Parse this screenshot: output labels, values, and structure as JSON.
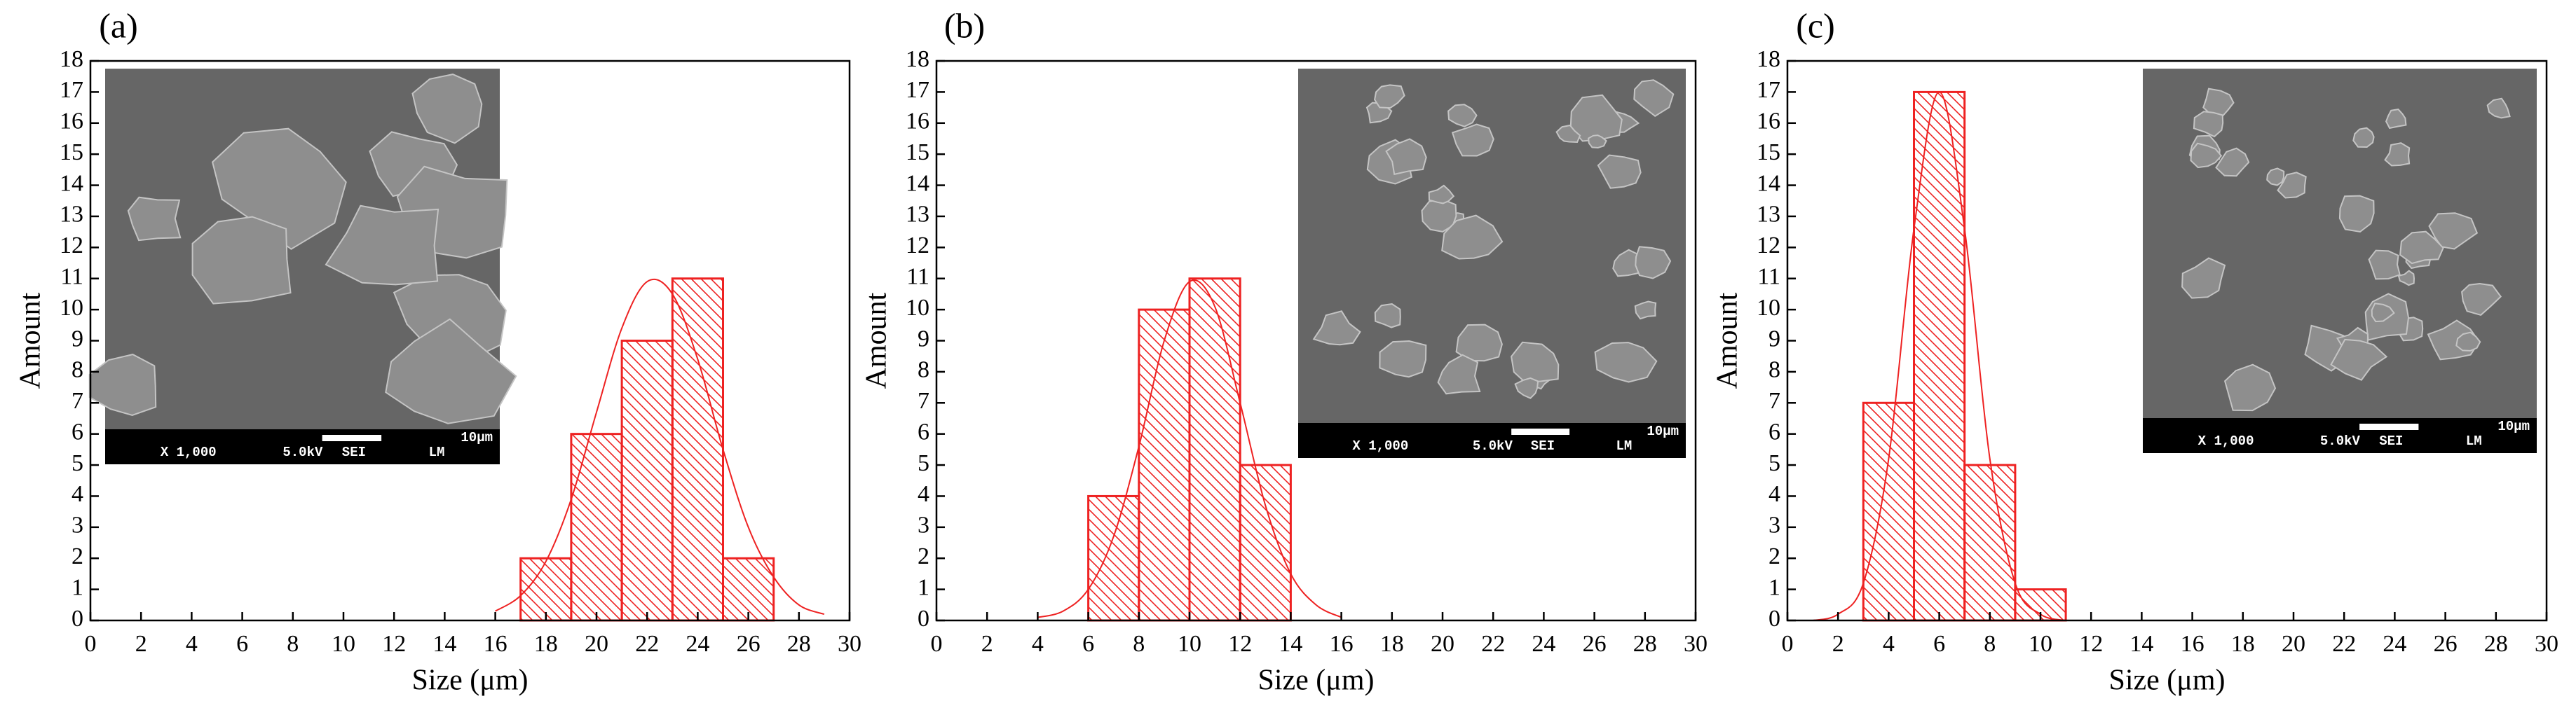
{
  "chart_data": [
    {
      "type": "histogram",
      "label": "(a)",
      "xlabel": "Size (μm)",
      "ylabel": "Amount",
      "color": "#ee2222",
      "bins": [
        17,
        19,
        21,
        23,
        25,
        27
      ],
      "values": [
        2,
        6,
        9,
        11,
        2
      ],
      "fit": {
        "x": [
          16,
          17,
          18,
          19,
          20,
          21,
          22,
          23,
          24,
          25,
          26,
          27,
          28,
          29
        ],
        "values": [
          0.3,
          0.8,
          1.9,
          3.9,
          6.7,
          9.4,
          10.9,
          10.5,
          8.4,
          5.5,
          3.0,
          1.4,
          0.5,
          0.2
        ]
      },
      "xlim": [
        0,
        30
      ],
      "xticks": [
        0,
        2,
        4,
        6,
        8,
        10,
        12,
        14,
        16,
        18,
        20,
        22,
        24,
        26,
        28,
        30
      ],
      "ylim": [
        0,
        18
      ],
      "yticks": [
        0,
        1,
        2,
        3,
        4,
        5,
        6,
        7,
        8,
        9,
        10,
        11,
        12,
        13,
        14,
        15,
        16,
        17,
        18
      ],
      "inset": {
        "magnification": "X 1,000",
        "voltage": "5.0kV",
        "detector": "SEI",
        "mode": "LM",
        "scale_bar": "10μm"
      }
    },
    {
      "type": "histogram",
      "label": "(b)",
      "xlabel": "Size (μm)",
      "ylabel": "Amount",
      "color": "#ee2222",
      "bins": [
        6,
        8,
        10,
        12,
        14
      ],
      "values": [
        4,
        10,
        11,
        5
      ],
      "fit": {
        "x": [
          4,
          5,
          6,
          7,
          8,
          9,
          10,
          11,
          12,
          13,
          14,
          15,
          16
        ],
        "values": [
          0.1,
          0.3,
          1.0,
          2.7,
          5.6,
          9.0,
          10.9,
          10.1,
          7.0,
          3.7,
          1.5,
          0.5,
          0.1
        ]
      },
      "xlim": [
        0,
        30
      ],
      "xticks": [
        0,
        2,
        4,
        6,
        8,
        10,
        12,
        14,
        16,
        18,
        20,
        22,
        24,
        26,
        28,
        30
      ],
      "ylim": [
        0,
        18
      ],
      "yticks": [
        0,
        1,
        2,
        3,
        4,
        5,
        6,
        7,
        8,
        9,
        10,
        11,
        12,
        13,
        14,
        15,
        16,
        17,
        18
      ],
      "inset": {
        "magnification": "X 1,000",
        "voltage": "5.0kV",
        "detector": "SEI",
        "mode": "LM",
        "scale_bar": "10μm"
      }
    },
    {
      "type": "histogram",
      "label": "(c)",
      "xlabel": "Size (μm)",
      "ylabel": "Amount",
      "color": "#ee2222",
      "bins": [
        3,
        5,
        7,
        9,
        11
      ],
      "values": [
        7,
        17,
        5,
        1
      ],
      "fit": {
        "x": [
          1,
          2,
          3,
          4,
          5,
          6,
          7,
          8,
          9,
          10,
          11
        ],
        "values": [
          0,
          0.2,
          1.2,
          5.2,
          12.6,
          17,
          12.6,
          5.2,
          1.2,
          0.2,
          0
        ]
      },
      "xlim": [
        0,
        30
      ],
      "xticks": [
        0,
        2,
        4,
        6,
        8,
        10,
        12,
        14,
        16,
        18,
        20,
        22,
        24,
        26,
        28,
        30
      ],
      "ylim": [
        0,
        18
      ],
      "yticks": [
        0,
        1,
        2,
        3,
        4,
        5,
        6,
        7,
        8,
        9,
        10,
        11,
        12,
        13,
        14,
        15,
        16,
        17,
        18
      ],
      "inset": {
        "magnification": "X 1,000",
        "voltage": "5.0kV",
        "detector": "SEI",
        "mode": "LM",
        "scale_bar": "10μm"
      }
    }
  ]
}
